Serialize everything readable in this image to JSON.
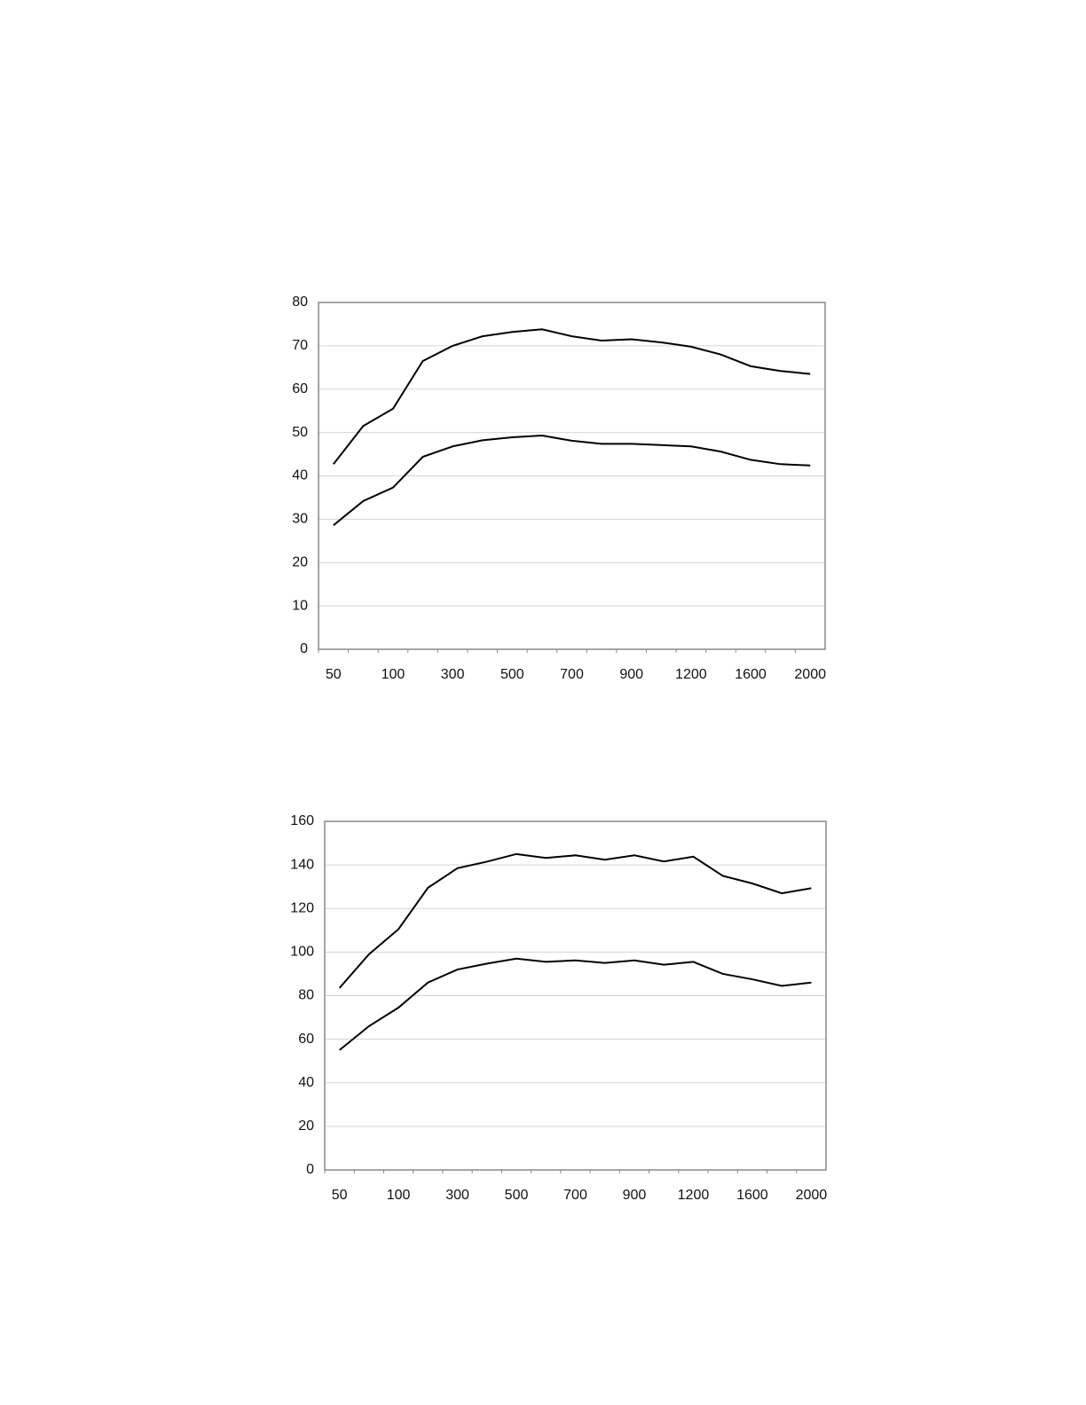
{
  "chart_data": [
    {
      "type": "line",
      "categories": [
        "50",
        null,
        "100",
        null,
        "300",
        null,
        "500",
        null,
        "700",
        null,
        "900",
        null,
        "1200",
        null,
        "1600",
        null,
        "2000"
      ],
      "series": [
        {
          "color": "#000000",
          "values": [
            42.7,
            51.5,
            55.5,
            66.5,
            70,
            72.2,
            73.2,
            73.8,
            72.2,
            71.2,
            71.5,
            70.8,
            69.8,
            68,
            65.3,
            64.2,
            63.5
          ]
        },
        {
          "color": "#000000",
          "values": [
            28.6,
            34.2,
            37.3,
            44.4,
            46.8,
            48.2,
            48.9,
            49.3,
            48.1,
            47.4,
            47.4,
            47.1,
            46.8,
            45.6,
            43.7,
            42.7,
            42.4
          ]
        }
      ],
      "ylim": [
        0,
        80
      ],
      "yticks": [
        0,
        10,
        20,
        30,
        40,
        50,
        60,
        70,
        80
      ],
      "grid": true
    },
    {
      "type": "line",
      "categories": [
        "50",
        null,
        "100",
        null,
        "300",
        null,
        "500",
        null,
        "700",
        null,
        "900",
        null,
        "1200",
        null,
        "1600",
        null,
        "2000"
      ],
      "series": [
        {
          "color": "#000000",
          "values": [
            83.5,
            99,
            110.5,
            129.5,
            138.5,
            141.5,
            145,
            143.2,
            144.4,
            142.4,
            144.4,
            141.6,
            143.8,
            135,
            131.5,
            127,
            129.3
          ]
        },
        {
          "color": "#000000",
          "values": [
            55,
            66,
            74.5,
            86,
            92,
            94.7,
            97,
            95.5,
            96.2,
            95,
            96.2,
            94.2,
            95.5,
            90,
            87.5,
            84.5,
            86
          ]
        }
      ],
      "ylim": [
        0,
        160
      ],
      "yticks": [
        0,
        20,
        40,
        60,
        80,
        100,
        120,
        140,
        160
      ],
      "grid": true
    }
  ]
}
